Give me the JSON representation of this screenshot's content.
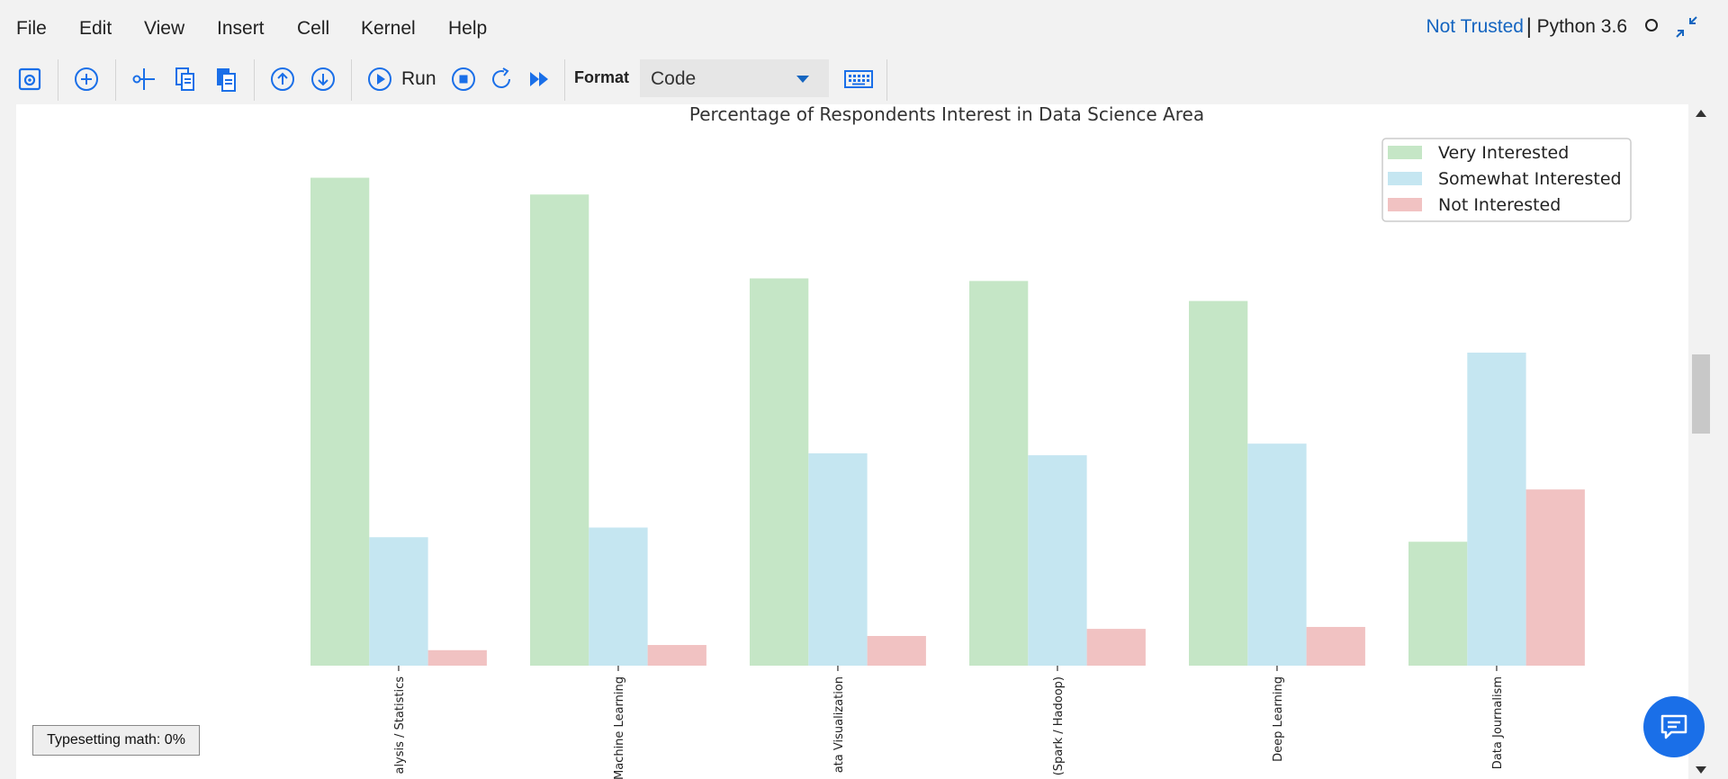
{
  "menu": {
    "items": [
      "File",
      "Edit",
      "View",
      "Insert",
      "Cell",
      "Kernel",
      "Help"
    ],
    "trust_status": "Not Trusted",
    "separator": "|",
    "kernel_name": "Python 3.6"
  },
  "toolbar": {
    "run_label": "Run",
    "format_label": "Format",
    "format_value": "Code"
  },
  "status": {
    "typesetting": "Typesetting math: 0%"
  },
  "colors": {
    "accent": "#1565c0",
    "very_interested": "#c5e6c6",
    "somewhat_interested": "#c5e6f1",
    "not_interested": "#f1c2c2"
  },
  "chart_data": {
    "type": "bar",
    "title": "Percentage of Respondents Interest in Data Science Area",
    "xlabel": "",
    "ylabel": "",
    "categories": [
      "Data Analysis / Statistics",
      "Machine Learning",
      "Data Visualization",
      "Big Data (Spark / Hadoop)",
      "Deep Learning",
      "Data Journalism"
    ],
    "visible_tick_labels": [
      "alysis / Statistics",
      "Machine Learning",
      "ata Visualization",
      "(Spark / Hadoop)",
      "Deep Learning",
      "Data Journalism"
    ],
    "ylim": [
      0,
      80
    ],
    "series": [
      {
        "name": "Very Interested",
        "color": "#c5e6c6",
        "values": [
          75.6,
          73.0,
          60.0,
          59.6,
          56.5,
          19.2
        ]
      },
      {
        "name": "Somewhat Interested",
        "color": "#c5e6f1",
        "values": [
          19.9,
          21.4,
          32.9,
          32.6,
          34.4,
          48.5
        ]
      },
      {
        "name": "Not Interested",
        "color": "#f1c2c2",
        "values": [
          2.4,
          3.2,
          4.6,
          5.7,
          6.0,
          27.3
        ]
      }
    ],
    "legend_position": "top-right",
    "grid": false
  }
}
